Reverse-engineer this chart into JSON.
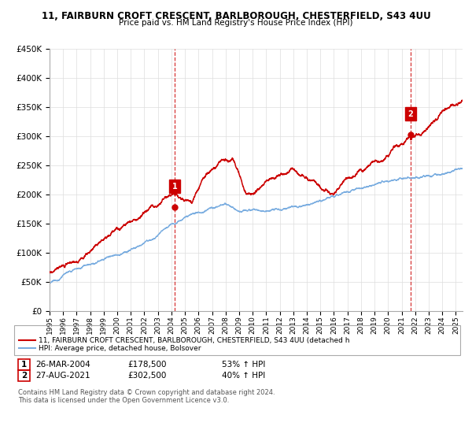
{
  "title": "11, FAIRBURN CROFT CRESCENT, BARLBOROUGH, CHESTERFIELD, S43 4UU",
  "subtitle": "Price paid vs. HM Land Registry's House Price Index (HPI)",
  "legend_line1": "11, FAIRBURN CROFT CRESCENT, BARLBOROUGH, CHESTERFIELD, S43 4UU (detached h",
  "legend_line2": "HPI: Average price, detached house, Bolsover",
  "sale1_date": "26-MAR-2004",
  "sale1_price": "£178,500",
  "sale1_hpi": "53% ↑ HPI",
  "sale2_date": "27-AUG-2021",
  "sale2_price": "£302,500",
  "sale2_hpi": "40% ↑ HPI",
  "footer": "Contains HM Land Registry data © Crown copyright and database right 2024.\nThis data is licensed under the Open Government Licence v3.0.",
  "line_color_red": "#cc0000",
  "line_color_blue": "#7aade0",
  "dashed_color": "#cc0000",
  "grid_color": "#dddddd",
  "ylim": [
    0,
    450000
  ],
  "yticks": [
    0,
    50000,
    100000,
    150000,
    200000,
    250000,
    300000,
    350000,
    400000,
    450000
  ],
  "sale1_year": 2004.23,
  "sale2_year": 2021.65,
  "sale1_price_val": 178500,
  "sale2_price_val": 302500
}
